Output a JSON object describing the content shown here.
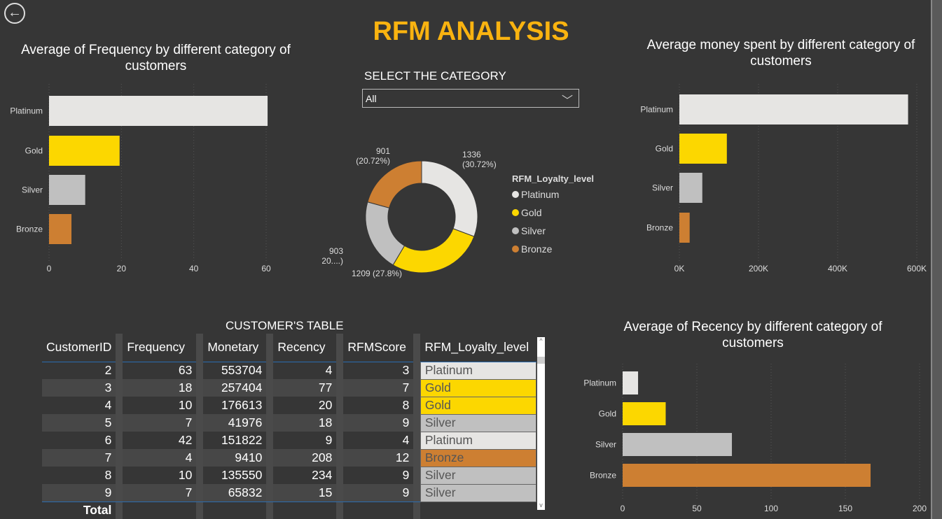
{
  "header": {
    "title": "RFM ANALYSIS",
    "back_icon": "arrow-left-circle-icon"
  },
  "colors": {
    "Platinum": "#e6e5e3",
    "Gold": "#fcd700",
    "Silver": "#c0c0c0",
    "Bronze": "#cd7f32",
    "title": "#f9b310"
  },
  "filter": {
    "label": "SELECT THE CATEGORY",
    "value": "All"
  },
  "chart_data": [
    {
      "type": "bar",
      "title": "Average of Frequency by different category of customers",
      "categories": [
        "Platinum",
        "Gold",
        "Silver",
        "Bronze"
      ],
      "values": [
        60.4,
        19.5,
        10,
        6.2
      ],
      "xlim": [
        0,
        60
      ],
      "ticks": [
        "0",
        "20",
        "40",
        "60"
      ],
      "tickvals": [
        0,
        20,
        40,
        60
      ]
    },
    {
      "type": "pie",
      "title": "",
      "legend_title": "RFM_Loyalty_level",
      "categories": [
        "Platinum",
        "Gold",
        "Silver",
        "Bronze"
      ],
      "values": [
        1336,
        1209,
        903,
        901
      ],
      "labels": [
        "1336\n(30.72%)",
        "1209 (27.8%)",
        "903\n(20....)",
        "901\n(20.72%)"
      ]
    },
    {
      "type": "bar",
      "title": "Average money spent by different category of customers",
      "categories": [
        "Platinum",
        "Gold",
        "Silver",
        "Bronze"
      ],
      "values": [
        578000,
        120000,
        58000,
        26000
      ],
      "xlim": [
        0,
        600000
      ],
      "ticks": [
        "0K",
        "200K",
        "400K",
        "600K"
      ],
      "tickvals": [
        0,
        200000,
        400000,
        600000
      ]
    },
    {
      "type": "bar",
      "title": "Average of Recency by different category of customers",
      "categories": [
        "Platinum",
        "Gold",
        "Silver",
        "Bronze"
      ],
      "values": [
        10.4,
        29,
        73.6,
        167
      ],
      "xlim": [
        0,
        200
      ],
      "ticks": [
        "0",
        "50",
        "100",
        "150",
        "200"
      ],
      "tickvals": [
        0,
        50,
        100,
        150,
        200
      ]
    }
  ],
  "table": {
    "title": "CUSTOMER'S TABLE",
    "columns": [
      "CustomerID",
      "Frequency",
      "Monetary",
      "Recency",
      "RFMScore",
      "RFM_Loyalty_level"
    ],
    "rows": [
      [
        "2",
        "63",
        "553704",
        "4",
        "3",
        "Platinum"
      ],
      [
        "3",
        "18",
        "257404",
        "77",
        "7",
        "Gold"
      ],
      [
        "4",
        "10",
        "176613",
        "20",
        "8",
        "Gold"
      ],
      [
        "5",
        "7",
        "41976",
        "18",
        "9",
        "Silver"
      ],
      [
        "6",
        "42",
        "151822",
        "9",
        "4",
        "Platinum"
      ],
      [
        "7",
        "4",
        "9410",
        "208",
        "12",
        "Bronze"
      ],
      [
        "8",
        "10",
        "135550",
        "234",
        "9",
        "Silver"
      ],
      [
        "9",
        "7",
        "65832",
        "15",
        "9",
        "Silver"
      ]
    ],
    "total_label": "Total",
    "scroll_up": "^",
    "scroll_down": "v"
  }
}
